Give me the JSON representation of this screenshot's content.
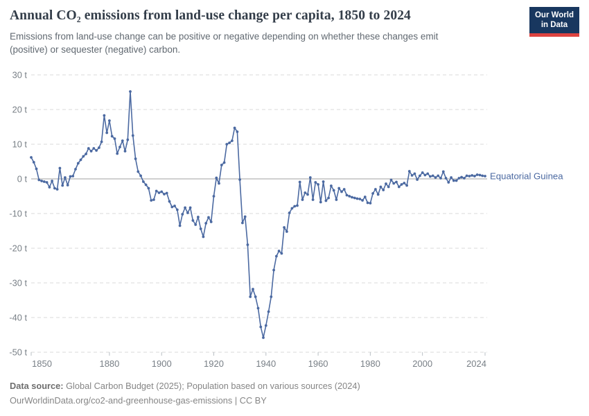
{
  "header": {
    "title": "Annual CO₂ emissions from land-use change per capita, 1850 to 2024",
    "subtitle": "Emissions from land-use change can be positive or negative depending on whether these changes emit (positive) or sequester (negative) carbon.",
    "logo": {
      "line1": "Our World",
      "line2": "in Data",
      "bg_color": "#18375f",
      "accent_color": "#dd4340",
      "text_color": "#ffffff"
    }
  },
  "chart_data": {
    "type": "line",
    "title": "Annual CO₂ emissions from land-use change per capita, 1850 to 2024",
    "xlabel": "",
    "ylabel": "",
    "unit": "t",
    "grid": "horizontal-dashed",
    "zero_line": true,
    "legend_position": "end-of-line-label",
    "x_axis": {
      "range": [
        1850,
        2024
      ],
      "ticks": [
        1850,
        1880,
        1900,
        1920,
        1940,
        1960,
        1980,
        2000,
        2024
      ]
    },
    "y_axis": {
      "range": [
        -50,
        30
      ],
      "ticks": [
        30,
        20,
        10,
        0,
        -10,
        -20,
        -30,
        -40,
        -50
      ],
      "tick_labels": [
        "30 t",
        "20 t",
        "10 t",
        "0 t",
        "-10 t",
        "-20 t",
        "-30 t",
        "-40 t",
        "-50 t"
      ]
    },
    "series": [
      {
        "name": "Equatorial Guinea",
        "color": "#4b69a1",
        "years": [
          1850,
          1851,
          1852,
          1853,
          1854,
          1855,
          1856,
          1857,
          1858,
          1859,
          1860,
          1861,
          1862,
          1863,
          1864,
          1865,
          1866,
          1867,
          1868,
          1869,
          1870,
          1871,
          1872,
          1873,
          1874,
          1875,
          1876,
          1877,
          1878,
          1879,
          1880,
          1881,
          1882,
          1883,
          1884,
          1885,
          1886,
          1887,
          1888,
          1889,
          1890,
          1891,
          1892,
          1893,
          1894,
          1895,
          1896,
          1897,
          1898,
          1899,
          1900,
          1901,
          1902,
          1903,
          1904,
          1905,
          1906,
          1907,
          1908,
          1909,
          1910,
          1911,
          1912,
          1913,
          1914,
          1915,
          1916,
          1917,
          1918,
          1919,
          1920,
          1921,
          1922,
          1923,
          1924,
          1925,
          1926,
          1927,
          1928,
          1929,
          1930,
          1931,
          1932,
          1933,
          1934,
          1935,
          1936,
          1937,
          1938,
          1939,
          1940,
          1941,
          1942,
          1943,
          1944,
          1945,
          1946,
          1947,
          1948,
          1949,
          1950,
          1951,
          1952,
          1953,
          1954,
          1955,
          1956,
          1957,
          1958,
          1959,
          1960,
          1961,
          1962,
          1963,
          1964,
          1965,
          1966,
          1967,
          1968,
          1969,
          1970,
          1971,
          1972,
          1973,
          1974,
          1975,
          1976,
          1977,
          1978,
          1979,
          1980,
          1981,
          1982,
          1983,
          1984,
          1985,
          1986,
          1987,
          1988,
          1989,
          1990,
          1991,
          1992,
          1993,
          1994,
          1995,
          1996,
          1997,
          1998,
          1999,
          2000,
          2001,
          2002,
          2003,
          2004,
          2005,
          2006,
          2007,
          2008,
          2009,
          2010,
          2011,
          2012,
          2013,
          2014,
          2015,
          2016,
          2017,
          2018,
          2019,
          2020,
          2021,
          2022,
          2023,
          2024
        ],
        "values": [
          6.2,
          4.8,
          2.9,
          -0.3,
          -0.6,
          -0.8,
          -1.0,
          -2.4,
          -0.6,
          -2.7,
          -3.0,
          3.1,
          -1.9,
          0.4,
          -1.8,
          0.7,
          0.8,
          2.8,
          4.5,
          5.5,
          6.5,
          7.2,
          8.8,
          8.0,
          8.8,
          8.2,
          9.0,
          10.7,
          18.3,
          13.3,
          16.8,
          12.3,
          11.6,
          7.3,
          9.2,
          11.0,
          8.0,
          11.3,
          25.2,
          12.5,
          5.8,
          2.1,
          0.9,
          -0.8,
          -1.7,
          -2.7,
          -6.2,
          -6.0,
          -3.5,
          -4.0,
          -3.7,
          -4.4,
          -4.1,
          -6.5,
          -8.1,
          -7.8,
          -8.9,
          -13.5,
          -10.2,
          -8.3,
          -9.8,
          -8.3,
          -12.0,
          -13.2,
          -11.0,
          -14.4,
          -16.7,
          -12.8,
          -11.1,
          -12.4,
          -5.0,
          0.3,
          -1.3,
          4.0,
          4.7,
          10.0,
          10.4,
          11.0,
          14.7,
          13.6,
          -0.2,
          -12.7,
          -10.9,
          -19.0,
          -34.0,
          -31.8,
          -34.0,
          -37.3,
          -42.7,
          -45.8,
          -42.3,
          -38.3,
          -34.0,
          -26.3,
          -22.3,
          -20.8,
          -21.5,
          -14.0,
          -15.2,
          -9.8,
          -8.5,
          -7.9,
          -7.7,
          -0.9,
          -6.0,
          -4.0,
          -4.5,
          0.4,
          -6.0,
          -1.0,
          -1.6,
          -6.7,
          -0.8,
          -6.3,
          -5.5,
          -2.0,
          -3.3,
          -6.0,
          -2.7,
          -3.7,
          -3.0,
          -4.7,
          -5.0,
          -5.3,
          -5.5,
          -5.7,
          -5.8,
          -6.2,
          -5.2,
          -6.9,
          -7.0,
          -4.2,
          -3.0,
          -4.5,
          -2.3,
          -3.2,
          -1.4,
          -2.3,
          -0.3,
          -1.3,
          -0.9,
          -2.3,
          -1.6,
          -1.2,
          -1.9,
          2.2,
          1.0,
          1.5,
          -0.2,
          0.9,
          1.8,
          1.1,
          1.5,
          0.7,
          0.9,
          0.4,
          0.9,
          0.2,
          2.1,
          0.2,
          -1.0,
          0.4,
          -0.5,
          -0.5,
          0.2,
          0.5,
          0.2,
          0.9,
          0.8,
          1.0,
          0.8,
          1.2,
          1.1,
          0.9,
          0.8
        ]
      }
    ]
  },
  "footer": {
    "datasource_label": "Data source:",
    "datasource_value": "Global Carbon Budget (2025); Population based on various sources (2024)",
    "link_line": "OurWorldinData.org/co2-and-greenhouse-gas-emissions | CC BY"
  }
}
